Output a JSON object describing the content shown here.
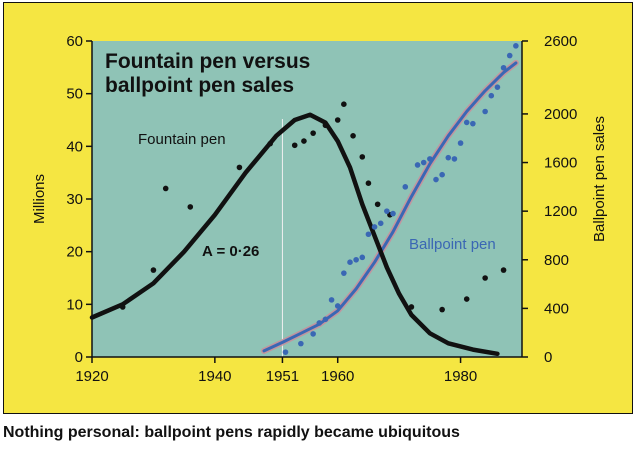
{
  "caption": "Nothing personal: ballpoint pens rapidly became ubiquitous",
  "colors": {
    "background": "#f5e642",
    "plot_area": "#8fc3b6",
    "fountain": "#111111",
    "ballpoint": "#3a67b4",
    "fit_pink": "#c98f9b",
    "marker_line": "#f0f0f0"
  },
  "chart_data": {
    "type": "scatter",
    "title_lines": [
      "Fountain pen versus",
      "ballpoint pen sales"
    ],
    "xlabel": "",
    "ylabel_left": "Millions",
    "ylabel_right": "Ballpoint pen sales",
    "xlim": [
      1920,
      1990
    ],
    "ylim_left": [
      0,
      60
    ],
    "ylim_right": [
      0,
      2600
    ],
    "x_ticks": [
      "1920",
      "1940",
      "1951",
      "1960",
      "1980"
    ],
    "x_tick_values": [
      1920,
      1940,
      1951,
      1960,
      1980
    ],
    "y_left_ticks": [
      "0",
      "10",
      "20",
      "30",
      "40",
      "50",
      "60"
    ],
    "y_left_tick_values": [
      0,
      10,
      20,
      30,
      40,
      50,
      60
    ],
    "y_right_ticks": [
      "0",
      "400",
      "800",
      "1200",
      "1600",
      "2000",
      "2600"
    ],
    "y_right_tick_values": [
      0,
      400,
      800,
      1200,
      1600,
      2000,
      2600
    ],
    "grid": false,
    "marker_year": 1951,
    "annotation": "A = 0·26",
    "series": [
      {
        "name": "Fountain pen",
        "axis": "left",
        "points": [
          {
            "x": 1925,
            "y": 9.5
          },
          {
            "x": 1930,
            "y": 16.5
          },
          {
            "x": 1932,
            "y": 32
          },
          {
            "x": 1936,
            "y": 28.5
          },
          {
            "x": 1944,
            "y": 36
          },
          {
            "x": 1949,
            "y": 40.5
          },
          {
            "x": 1953,
            "y": 40.2
          },
          {
            "x": 1954.5,
            "y": 41
          },
          {
            "x": 1956,
            "y": 42.5
          },
          {
            "x": 1958,
            "y": 44
          },
          {
            "x": 1960,
            "y": 45
          },
          {
            "x": 1961,
            "y": 48
          },
          {
            "x": 1962.5,
            "y": 42
          },
          {
            "x": 1964,
            "y": 38
          },
          {
            "x": 1965,
            "y": 33
          },
          {
            "x": 1966.5,
            "y": 29
          },
          {
            "x": 1968.5,
            "y": 27
          },
          {
            "x": 1972,
            "y": 9.5
          },
          {
            "x": 1977,
            "y": 9
          },
          {
            "x": 1981,
            "y": 11
          },
          {
            "x": 1984,
            "y": 15
          },
          {
            "x": 1987,
            "y": 16.5
          }
        ],
        "curve": [
          {
            "x": 1920,
            "y": 7.5
          },
          {
            "x": 1925,
            "y": 10
          },
          {
            "x": 1930,
            "y": 14
          },
          {
            "x": 1935,
            "y": 20
          },
          {
            "x": 1940,
            "y": 27
          },
          {
            "x": 1945,
            "y": 35
          },
          {
            "x": 1950,
            "y": 42
          },
          {
            "x": 1953,
            "y": 45
          },
          {
            "x": 1955.5,
            "y": 46
          },
          {
            "x": 1958,
            "y": 44.5
          },
          {
            "x": 1960,
            "y": 41
          },
          {
            "x": 1962,
            "y": 36
          },
          {
            "x": 1964,
            "y": 29
          },
          {
            "x": 1966,
            "y": 23
          },
          {
            "x": 1968,
            "y": 17
          },
          {
            "x": 1970,
            "y": 12
          },
          {
            "x": 1972,
            "y": 8
          },
          {
            "x": 1975,
            "y": 4.5
          },
          {
            "x": 1978,
            "y": 2.6
          },
          {
            "x": 1982,
            "y": 1.4
          },
          {
            "x": 1986,
            "y": 0.6
          }
        ]
      },
      {
        "name": "Ballpoint pen",
        "axis": "right",
        "points": [
          {
            "x": 1951.5,
            "y": 40
          },
          {
            "x": 1954,
            "y": 110
          },
          {
            "x": 1956,
            "y": 190
          },
          {
            "x": 1957,
            "y": 280
          },
          {
            "x": 1958,
            "y": 310
          },
          {
            "x": 1959,
            "y": 470
          },
          {
            "x": 1960,
            "y": 420
          },
          {
            "x": 1961,
            "y": 690
          },
          {
            "x": 1962,
            "y": 780
          },
          {
            "x": 1963,
            "y": 800
          },
          {
            "x": 1964,
            "y": 820
          },
          {
            "x": 1965,
            "y": 1010
          },
          {
            "x": 1966,
            "y": 1070
          },
          {
            "x": 1967,
            "y": 1100
          },
          {
            "x": 1968,
            "y": 1200
          },
          {
            "x": 1969,
            "y": 1180
          },
          {
            "x": 1971,
            "y": 1400
          },
          {
            "x": 1973,
            "y": 1580
          },
          {
            "x": 1974,
            "y": 1600
          },
          {
            "x": 1975,
            "y": 1630
          },
          {
            "x": 1976,
            "y": 1460
          },
          {
            "x": 1977,
            "y": 1500
          },
          {
            "x": 1978,
            "y": 1640
          },
          {
            "x": 1979,
            "y": 1630
          },
          {
            "x": 1980,
            "y": 1760
          },
          {
            "x": 1981,
            "y": 1930
          },
          {
            "x": 1982,
            "y": 1920
          },
          {
            "x": 1984,
            "y": 2020
          },
          {
            "x": 1985,
            "y": 2150
          },
          {
            "x": 1986,
            "y": 2220
          },
          {
            "x": 1987,
            "y": 2380
          },
          {
            "x": 1988,
            "y": 2480
          },
          {
            "x": 1989,
            "y": 2560
          }
        ],
        "curve": [
          {
            "x": 1948,
            "y": 50
          },
          {
            "x": 1951,
            "y": 120
          },
          {
            "x": 1954,
            "y": 195
          },
          {
            "x": 1957,
            "y": 270
          },
          {
            "x": 1960,
            "y": 380
          },
          {
            "x": 1963,
            "y": 560
          },
          {
            "x": 1966,
            "y": 780
          },
          {
            "x": 1969,
            "y": 1030
          },
          {
            "x": 1972,
            "y": 1320
          },
          {
            "x": 1975,
            "y": 1590
          },
          {
            "x": 1978,
            "y": 1820
          },
          {
            "x": 1981,
            "y": 2020
          },
          {
            "x": 1984,
            "y": 2190
          },
          {
            "x": 1987,
            "y": 2340
          },
          {
            "x": 1989,
            "y": 2420
          }
        ]
      }
    ]
  }
}
